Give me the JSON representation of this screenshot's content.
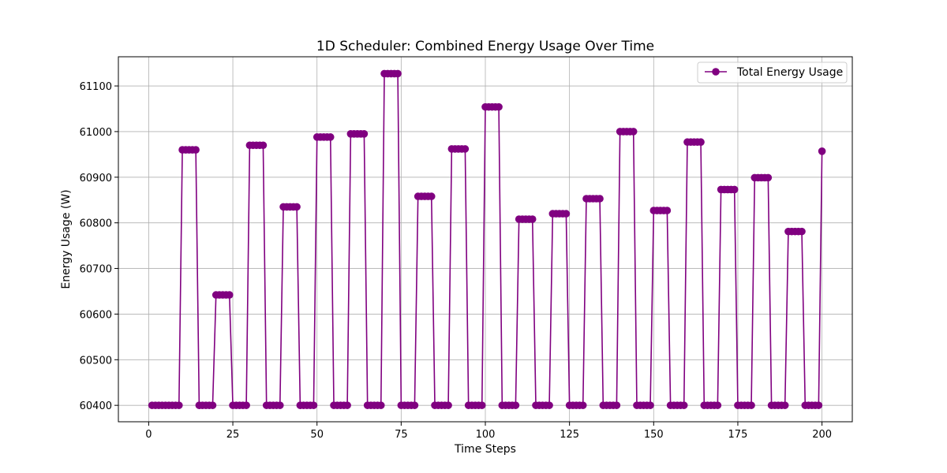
{
  "chart_data": {
    "type": "line",
    "title": "1D Scheduler: Combined Energy Usage Over Time",
    "xlabel": "Time Steps",
    "ylabel": "Energy Usage (W)",
    "xlim": [
      -9,
      209
    ],
    "ylim": [
      60364,
      61164
    ],
    "x_ticks": [
      0,
      25,
      50,
      75,
      100,
      125,
      150,
      175,
      200
    ],
    "y_ticks": [
      60400,
      60500,
      60600,
      60700,
      60800,
      60900,
      61000,
      61100
    ],
    "grid": true,
    "legend_position": "top-right",
    "series": [
      {
        "name": "Total Energy Usage",
        "color": "#800080",
        "marker": "circle",
        "cycle_length": 10,
        "baseline": 60400,
        "segments": [
          {
            "x_start": 1,
            "x_end": 9,
            "y": 60400
          },
          {
            "x_start": 10,
            "x_end": 14,
            "y": 60960
          },
          {
            "x_start": 15,
            "x_end": 19,
            "y": 60400
          },
          {
            "x_start": 20,
            "x_end": 24,
            "y": 60642
          },
          {
            "x_start": 25,
            "x_end": 29,
            "y": 60400
          },
          {
            "x_start": 30,
            "x_end": 34,
            "y": 60970
          },
          {
            "x_start": 35,
            "x_end": 39,
            "y": 60400
          },
          {
            "x_start": 40,
            "x_end": 44,
            "y": 60835
          },
          {
            "x_start": 45,
            "x_end": 49,
            "y": 60400
          },
          {
            "x_start": 50,
            "x_end": 54,
            "y": 60988
          },
          {
            "x_start": 55,
            "x_end": 59,
            "y": 60400
          },
          {
            "x_start": 60,
            "x_end": 64,
            "y": 60995
          },
          {
            "x_start": 65,
            "x_end": 69,
            "y": 60400
          },
          {
            "x_start": 70,
            "x_end": 74,
            "y": 61127
          },
          {
            "x_start": 75,
            "x_end": 79,
            "y": 60400
          },
          {
            "x_start": 80,
            "x_end": 84,
            "y": 60858
          },
          {
            "x_start": 85,
            "x_end": 89,
            "y": 60400
          },
          {
            "x_start": 90,
            "x_end": 94,
            "y": 60962
          },
          {
            "x_start": 95,
            "x_end": 99,
            "y": 60400
          },
          {
            "x_start": 100,
            "x_end": 104,
            "y": 61054
          },
          {
            "x_start": 105,
            "x_end": 109,
            "y": 60400
          },
          {
            "x_start": 110,
            "x_end": 114,
            "y": 60808
          },
          {
            "x_start": 115,
            "x_end": 119,
            "y": 60400
          },
          {
            "x_start": 120,
            "x_end": 124,
            "y": 60820
          },
          {
            "x_start": 125,
            "x_end": 129,
            "y": 60400
          },
          {
            "x_start": 130,
            "x_end": 134,
            "y": 60853
          },
          {
            "x_start": 135,
            "x_end": 139,
            "y": 60400
          },
          {
            "x_start": 140,
            "x_end": 144,
            "y": 61000
          },
          {
            "x_start": 145,
            "x_end": 149,
            "y": 60400
          },
          {
            "x_start": 150,
            "x_end": 154,
            "y": 60827
          },
          {
            "x_start": 155,
            "x_end": 159,
            "y": 60400
          },
          {
            "x_start": 160,
            "x_end": 164,
            "y": 60977
          },
          {
            "x_start": 165,
            "x_end": 169,
            "y": 60400
          },
          {
            "x_start": 170,
            "x_end": 174,
            "y": 60873
          },
          {
            "x_start": 175,
            "x_end": 179,
            "y": 60400
          },
          {
            "x_start": 180,
            "x_end": 184,
            "y": 60899
          },
          {
            "x_start": 185,
            "x_end": 189,
            "y": 60400
          },
          {
            "x_start": 190,
            "x_end": 194,
            "y": 60781
          },
          {
            "x_start": 195,
            "x_end": 199,
            "y": 60400
          },
          {
            "x_start": 200,
            "x_end": 200,
            "y": 60957
          }
        ]
      }
    ]
  }
}
